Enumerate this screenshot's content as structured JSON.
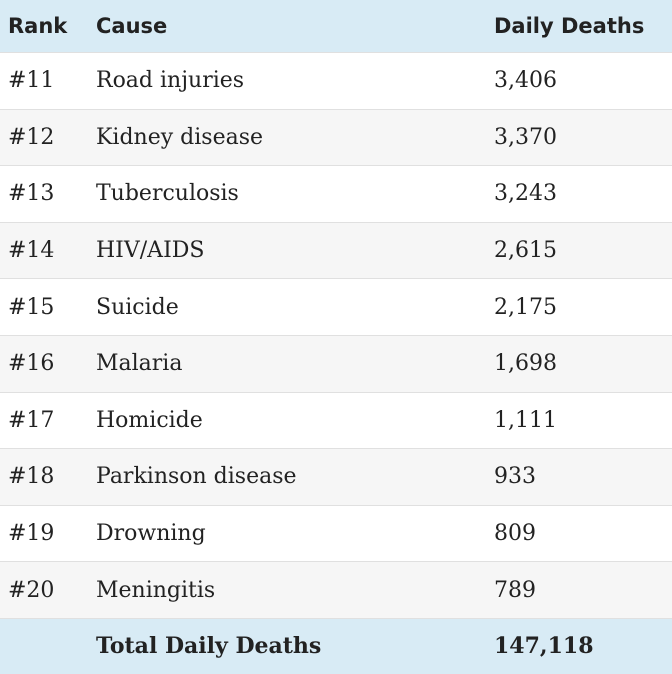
{
  "table": {
    "header": [
      "Rank",
      "Cause",
      "Daily Deaths"
    ],
    "rows": [
      [
        "#11",
        "Road injuries",
        "3,406"
      ],
      [
        "#12",
        "Kidney disease",
        "3,370"
      ],
      [
        "#13",
        "Tuberculosis",
        "3,243"
      ],
      [
        "#14",
        "HIV/AIDS",
        "2,615"
      ],
      [
        "#15",
        "Suicide",
        "2,175"
      ],
      [
        "#16",
        "Malaria",
        "1,698"
      ],
      [
        "#17",
        "Homicide",
        "1,111"
      ],
      [
        "#18",
        "Parkinson disease",
        "933"
      ],
      [
        "#19",
        "Drowning",
        "809"
      ],
      [
        "#20",
        "Meningitis",
        "789"
      ]
    ],
    "footer": {
      "label": "Total Daily Deaths",
      "value": "147,118"
    }
  }
}
